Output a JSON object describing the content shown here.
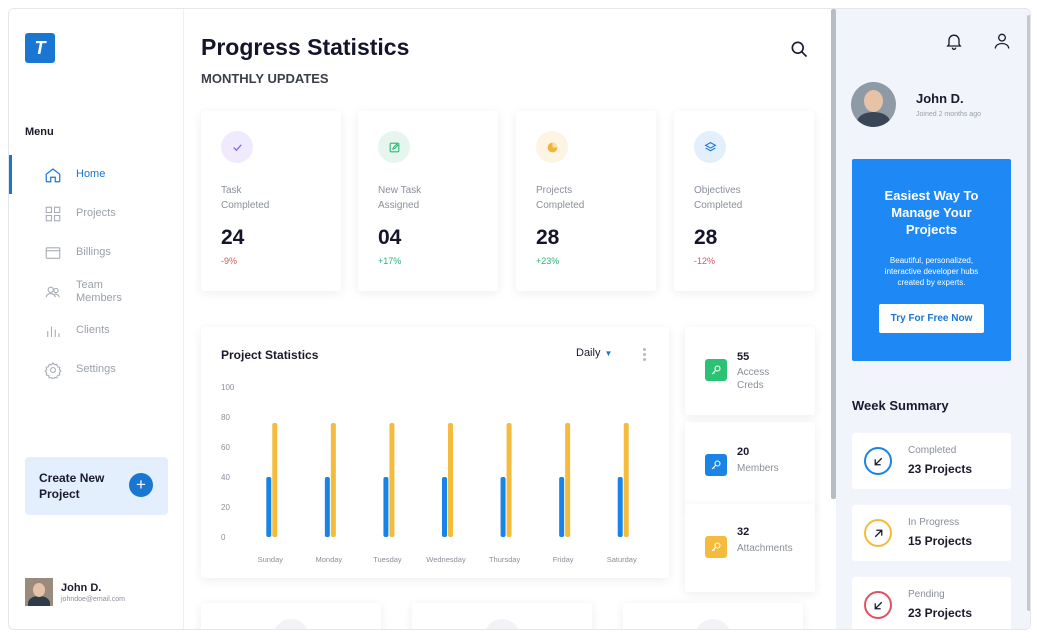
{
  "sidebar": {
    "logo": "T",
    "menu_title": "Menu",
    "items": [
      {
        "label": "Home",
        "icon": "home-icon",
        "active": true
      },
      {
        "label": "Projects",
        "icon": "grid-icon",
        "active": false
      },
      {
        "label": "Billings",
        "icon": "wallet-icon",
        "active": false
      },
      {
        "label": "Team\nMembers",
        "icon": "team-icon",
        "active": false
      },
      {
        "label": "Clients",
        "icon": "bar-chart-icon",
        "active": false
      },
      {
        "label": "Settings",
        "icon": "gear-icon",
        "active": false
      }
    ],
    "create_label": "Create New\nProject",
    "create_icon": "+",
    "user": {
      "name": "John D.",
      "email": "johndoe@email.com"
    }
  },
  "header": {
    "title": "Progress Statistics",
    "subtitle": "MONTHLY UPDATES"
  },
  "stats": [
    {
      "label": "Task\nCompleted",
      "value": "24",
      "change": "-9%",
      "change_color": "#e05260",
      "icon": "check-icon",
      "icon_color": "#8b6fe0",
      "icon_bg": "#efeafd"
    },
    {
      "label": "New Task\nAssigned",
      "value": "04",
      "change": "+17%",
      "change_color": "#2bb673",
      "icon": "edit-icon",
      "icon_color": "#2bb673",
      "icon_bg": "#e6f6ef"
    },
    {
      "label": "Projects\nCompleted",
      "value": "28",
      "change": "+23%",
      "change_color": "#2bb673",
      "icon": "pie-icon",
      "icon_color": "#f5b335",
      "icon_bg": "#fdf4e3"
    },
    {
      "label": "Objectives\nCompleted",
      "value": "28",
      "change": "-12%",
      "change_color": "#e05260",
      "icon": "layers-icon",
      "icon_color": "#1976d2",
      "icon_bg": "#e3effd"
    }
  ],
  "chart": {
    "title": "Project Statistics",
    "period": "Daily",
    "series_colors": [
      "#1984e6",
      "#f5bb3d"
    ]
  },
  "chart_data": {
    "type": "bar",
    "title": "Project Statistics",
    "categories": [
      "Sunday",
      "Monday",
      "Tuesday",
      "Wednesday",
      "Thursday",
      "Friday",
      "Saturday"
    ],
    "series": [
      {
        "values": [
          40,
          40,
          40,
          40,
          40,
          40,
          40
        ]
      },
      {
        "values": [
          76,
          76,
          76,
          76,
          76,
          76,
          76
        ]
      }
    ],
    "yticks": [
      0,
      20,
      40,
      60,
      80,
      100
    ],
    "ylim": [
      0,
      100
    ],
    "grid": false
  },
  "mini": [
    {
      "value": "55",
      "label": "Access\nCreds",
      "icon": "key-icon",
      "color": "#2bc274"
    },
    {
      "value": "20",
      "label": "Members",
      "icon": "key-icon",
      "color": "#1984e6"
    },
    {
      "value": "32",
      "label": "Attachments",
      "icon": "key-icon",
      "color": "#f5bb3d"
    }
  ],
  "right": {
    "user_name": "John D.",
    "joined": "Joined 2 months ago",
    "promo_title": "Easiest Way To\nManage Your\nProjects",
    "promo_text": "Beautiful, personalized,\ninteractive developer hubs\ncreated by experts.",
    "promo_button": "Try For Free Now",
    "week_title": "Week Summary",
    "summary": [
      {
        "label": "Completed",
        "value": "23 Projects",
        "color": "#1984e6",
        "dir": "down-left"
      },
      {
        "label": "In Progress",
        "value": "15 Projects",
        "color": "#f5bb3d",
        "dir": "up-right"
      },
      {
        "label": "Pending",
        "value": "23 Projects",
        "color": "#e05260",
        "dir": "down-left"
      }
    ]
  }
}
